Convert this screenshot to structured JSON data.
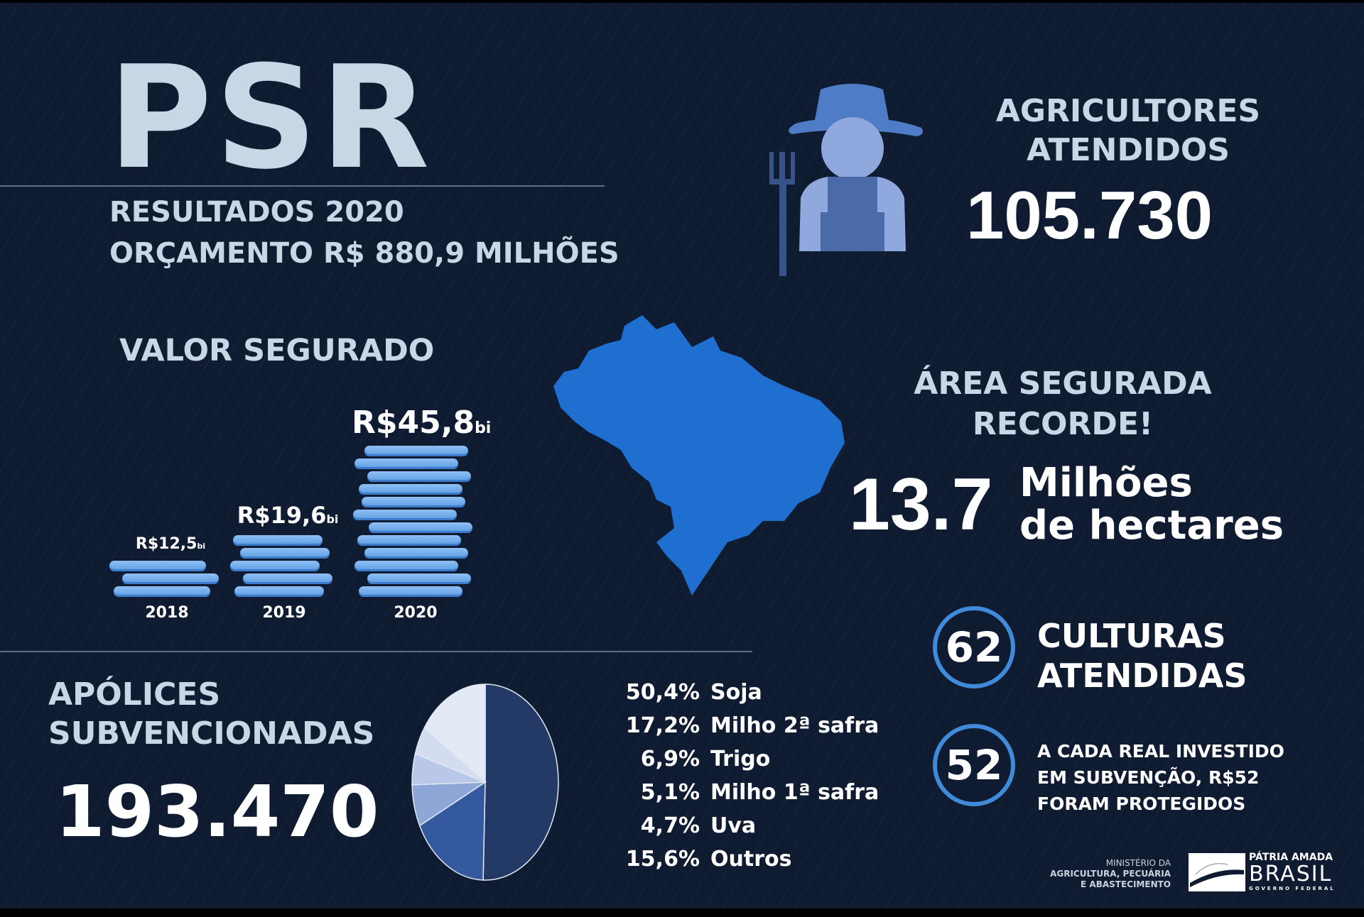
{
  "header": {
    "title": "PSR",
    "subtitle_1": "RESULTADOS 2020",
    "subtitle_2": "ORÇAMENTO R$ 880,9 MILHÕES"
  },
  "farmers": {
    "label_1": "AGRICULTORES",
    "label_2": "ATENDIDOS",
    "value": "105.730",
    "icon": "farmer-icon"
  },
  "insured_value": {
    "title": "VALOR SEGURADO"
  },
  "area": {
    "label_1": "ÁREA SEGURADA",
    "label_2": "RECORDE!",
    "value": "13.7",
    "unit_1": "Milhões",
    "unit_2": "de hectares",
    "icon": "brazil-map-icon"
  },
  "crops": {
    "value": "62",
    "label_1": "CULTURAS",
    "label_2": "ATENDIDAS"
  },
  "return": {
    "value": "52",
    "line_1": "A CADA REAL INVESTIDO",
    "line_2": "EM SUBVENÇÃO, R$52",
    "line_3": "FORAM PROTEGIDOS"
  },
  "policies": {
    "label_1": "APÓLICES",
    "label_2": "SUBVENCIONADAS",
    "value": "193.470"
  },
  "footer": {
    "ministry": [
      "MINISTÉRIO DA",
      "AGRICULTURA, PECUÁRIA",
      "E ABASTECIMENTO"
    ],
    "gov_1": "PÁTRIA AMADA",
    "gov_2": "BRASIL",
    "gov_3": "GOVERNO FEDERAL"
  },
  "colors": {
    "background": "#0f1b30",
    "accent": "#3f8bd9",
    "title": "#c8d7e6",
    "coin": "#7fb3ee"
  },
  "chart_data": [
    {
      "type": "bar",
      "title": "VALOR SEGURADO",
      "categories": [
        "2018",
        "2019",
        "2020"
      ],
      "values": [
        12.5,
        19.6,
        45.8
      ],
      "labels": [
        {
          "main": "R$12,5",
          "unit": "bi"
        },
        {
          "main": "R$19,6",
          "unit": "bi"
        },
        {
          "main": "R$45,8",
          "unit": "bi"
        }
      ],
      "style": "coin stacks"
    },
    {
      "type": "pie",
      "slices": [
        {
          "pct": "50,4%",
          "label": "Soja",
          "value": 50.4,
          "color": "#243a66"
        },
        {
          "pct": "17,2%",
          "label": "Milho 2ª safra",
          "value": 17.2,
          "color": "#34599e"
        },
        {
          "pct": "6,9%",
          "label": "Trigo",
          "value": 6.9,
          "color": "#8fa7d6"
        },
        {
          "pct": "5,1%",
          "label": "Milho 1ª safra",
          "value": 5.1,
          "color": "#b9c8e6"
        },
        {
          "pct": "4,7%",
          "label": "Uva",
          "value": 4.7,
          "color": "#d3ddef"
        },
        {
          "pct": "15,6%",
          "label": "Outros",
          "value": 15.6,
          "color": "#e3eaf6"
        }
      ]
    }
  ]
}
